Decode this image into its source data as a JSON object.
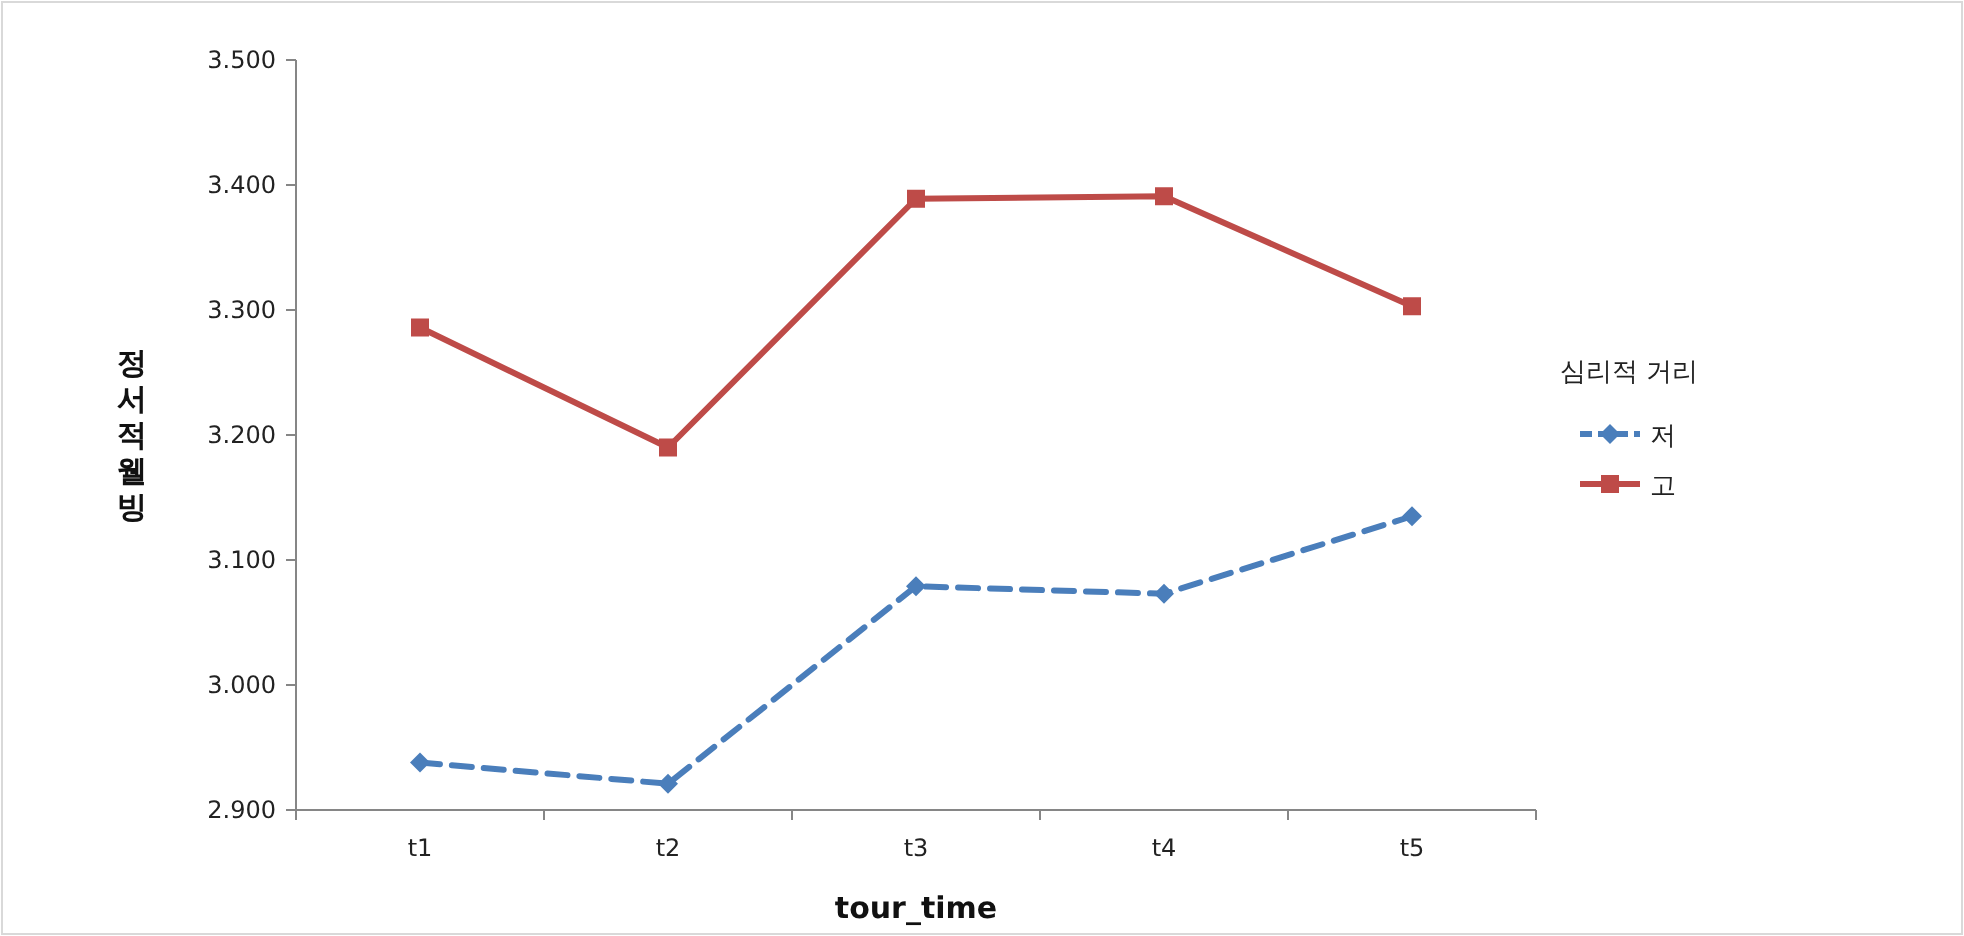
{
  "chart_data": {
    "type": "line",
    "xlabel": "tour_time",
    "ylabel": "정서적 웰빙",
    "legend_title": "심리적 거리",
    "legend": "right",
    "categories": [
      "t1",
      "t2",
      "t3",
      "t4",
      "t5"
    ],
    "ylim": [
      2.9,
      3.5
    ],
    "yticks": [
      {
        "value": 2.9,
        "label": "2.900"
      },
      {
        "value": 3.0,
        "label": "3.000"
      },
      {
        "value": 3.1,
        "label": "3.100"
      },
      {
        "value": 3.2,
        "label": "3.200"
      },
      {
        "value": 3.3,
        "label": "3.300"
      },
      {
        "value": 3.4,
        "label": "3.400"
      },
      {
        "value": 3.5,
        "label": "3.500"
      }
    ],
    "series": [
      {
        "name": "저",
        "color": "#4a7ebb",
        "marker": "diamond",
        "line_style": "dashed",
        "values": [
          2.938,
          2.921,
          3.079,
          3.073,
          3.135
        ]
      },
      {
        "name": "고",
        "color": "#be4b48",
        "marker": "square",
        "line_style": "solid",
        "values": [
          3.286,
          3.19,
          3.389,
          3.391,
          3.303
        ]
      }
    ]
  }
}
